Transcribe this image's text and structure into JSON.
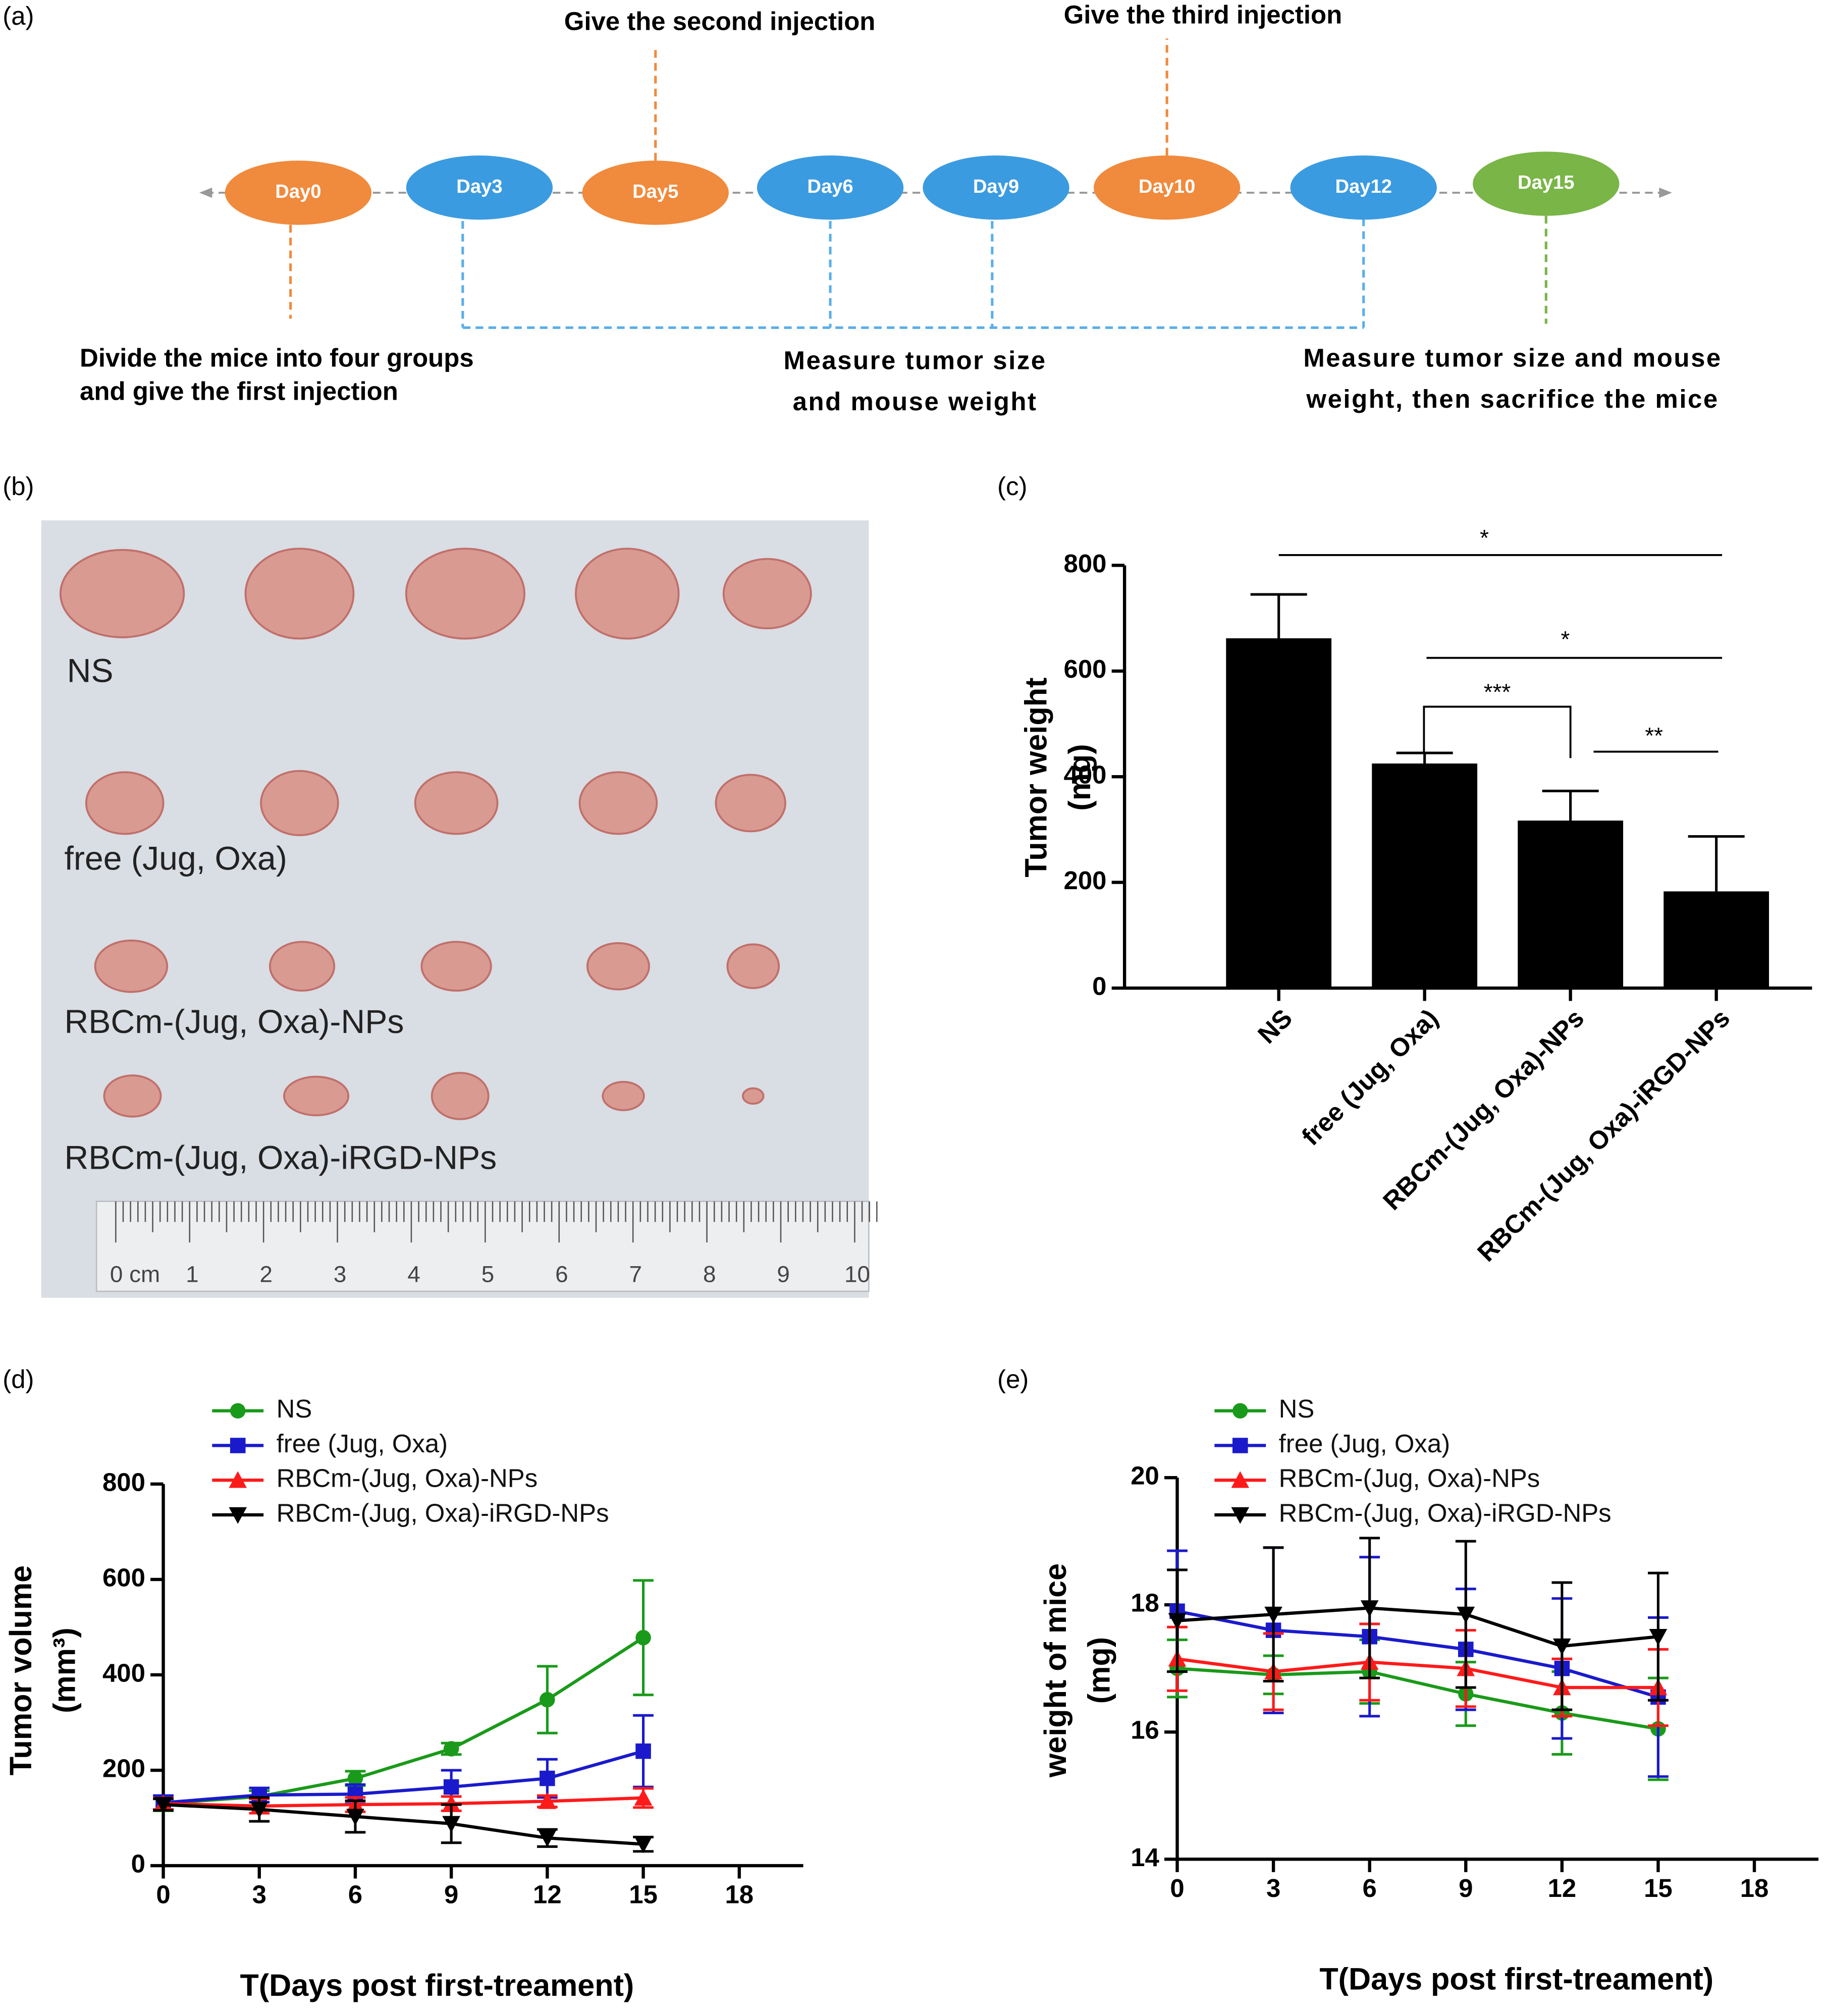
{
  "panel_labels": [
    "(a)",
    "(b)",
    "(c)",
    "(d)",
    "(e)"
  ],
  "timeline": {
    "days": [
      {
        "label": "Day0",
        "color": "#f08a3c"
      },
      {
        "label": "Day3",
        "color": "#3b9be0"
      },
      {
        "label": "Day5",
        "color": "#f08a3c"
      },
      {
        "label": "Day6",
        "color": "#3b9be0"
      },
      {
        "label": "Day9",
        "color": "#3b9be0"
      },
      {
        "label": "Day10",
        "color": "#f08a3c"
      },
      {
        "label": "Day12",
        "color": "#3b9be0"
      },
      {
        "label": "Day15",
        "color": "#79b547"
      }
    ],
    "annotations": [
      "Give the second injection",
      "Give the third injection",
      "Divide the mice into four groups",
      "and give the first injection",
      "Measure tumor size",
      "and mouse weight",
      "Measure tumor size and mouse",
      "weight, then sacrifice the mice"
    ]
  },
  "photo": {
    "labels": [
      "NS",
      "free (Jug, Oxa)",
      "RBCm-(Jug, Oxa)-NPs",
      "RBCm-(Jug, Oxa)-iRGD-NPs"
    ],
    "ruler": [
      "0 cm",
      "1",
      "2",
      "3",
      "4",
      "5",
      "6",
      "7",
      "8",
      "9",
      "10"
    ]
  },
  "chart_data": [
    {
      "type": "bar",
      "ylabel": [
        "Tumor weight",
        "(mg)"
      ],
      "categories": [
        "NS",
        "free (Jug, Oxa)",
        "RBCm-(Jug, Oxa)-NPs",
        "RBCm-(Jug, Oxa)-iRGD-NPs"
      ],
      "values": [
        662,
        425,
        317,
        183
      ],
      "errors": [
        83,
        20,
        56,
        104
      ],
      "color": "#000000",
      "ylim": [
        0,
        800
      ],
      "yticks": [
        0,
        200,
        400,
        600,
        800
      ],
      "annotations": [
        "*",
        "*",
        "***",
        "**"
      ]
    },
    {
      "type": "line",
      "xlabel": "T(Days post first-treament)",
      "ylabel": [
        "Tumor volume",
        "(mm³)"
      ],
      "x": [
        0,
        3,
        6,
        9,
        12,
        15
      ],
      "xlim": [
        0,
        20
      ],
      "xticks": [
        0,
        3,
        6,
        9,
        12,
        15,
        18
      ],
      "ylim": [
        0,
        800
      ],
      "yticks": [
        0,
        200,
        400,
        600,
        800
      ],
      "series": [
        {
          "name": "NS",
          "color": "#1a9a1a",
          "marker": "circle",
          "values": [
            130,
            145,
            183,
            245,
            348,
            478
          ],
          "errors": [
            15,
            12,
            15,
            12,
            70,
            120
          ]
        },
        {
          "name": "free (Jug, Oxa)",
          "color": "#1a1acc",
          "marker": "square",
          "values": [
            132,
            148,
            150,
            165,
            183,
            240
          ],
          "errors": [
            15,
            15,
            20,
            35,
            40,
            75
          ]
        },
        {
          "name": "RBCm-(Jug, Oxa)-NPs",
          "color": "#ff1a1a",
          "marker": "triangle",
          "values": [
            130,
            125,
            128,
            130,
            135,
            142
          ],
          "errors": [
            12,
            15,
            15,
            15,
            12,
            20
          ]
        },
        {
          "name": "RBCm-(Jug, Oxa)-iRGD-NPs",
          "color": "#000000",
          "marker": "triangle-down",
          "values": [
            128,
            118,
            103,
            88,
            58,
            45
          ],
          "errors": [
            12,
            25,
            33,
            40,
            18,
            15
          ]
        }
      ]
    },
    {
      "type": "line",
      "xlabel": "T(Days post first-treament)",
      "ylabel": [
        "weight of mice",
        "(mg)"
      ],
      "x": [
        0,
        3,
        6,
        9,
        12,
        15
      ],
      "xlim": [
        0,
        20
      ],
      "xticks": [
        0,
        3,
        6,
        9,
        12,
        15,
        18
      ],
      "ylim": [
        14,
        20
      ],
      "yticks": [
        14,
        16,
        18,
        20
      ],
      "series": [
        {
          "name": "NS",
          "color": "#1a9a1a",
          "marker": "circle",
          "values": [
            17.0,
            16.9,
            16.95,
            16.6,
            16.3,
            16.05
          ],
          "errors": [
            0.45,
            0.3,
            0.5,
            0.5,
            0.65,
            0.8
          ]
        },
        {
          "name": "free (Jug, Oxa)",
          "color": "#1a1acc",
          "marker": "square",
          "values": [
            17.9,
            17.6,
            17.5,
            17.3,
            17.0,
            16.55
          ],
          "errors": [
            0.95,
            1.3,
            1.25,
            0.95,
            1.1,
            1.25
          ]
        },
        {
          "name": "RBCm-(Jug, Oxa)-NPs",
          "color": "#ff1a1a",
          "marker": "triangle",
          "values": [
            17.15,
            16.95,
            17.1,
            17.0,
            16.7,
            16.7
          ],
          "errors": [
            0.5,
            0.6,
            0.6,
            0.6,
            0.45,
            0.6
          ]
        },
        {
          "name": "RBCm-(Jug, Oxa)-iRGD-NPs",
          "color": "#000000",
          "marker": "triangle-down",
          "values": [
            17.75,
            17.85,
            17.95,
            17.85,
            17.35,
            17.5
          ],
          "errors": [
            0.8,
            1.05,
            1.1,
            1.15,
            1.0,
            1.0
          ]
        }
      ]
    }
  ]
}
